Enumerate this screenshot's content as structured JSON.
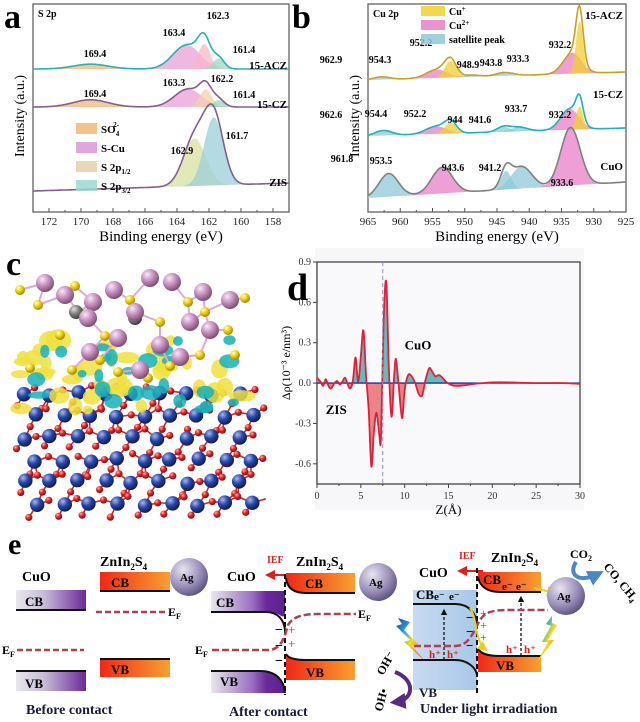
{
  "figure": {
    "panel_labels": [
      "a",
      "b",
      "c",
      "d",
      "e"
    ]
  },
  "chart_data": [
    {
      "id": "a",
      "type": "area",
      "title": "S 2p",
      "xlabel": "Binding energy (eV)",
      "ylabel": "Intensity (a.u.)",
      "xlim": [
        173,
        157
      ],
      "x_ticks": [
        172,
        170,
        168,
        166,
        164,
        162,
        160,
        158
      ],
      "legend": [
        {
          "name": "SO4 2-",
          "label_main": "SO",
          "label_sub": "4",
          "label_sup": "2-",
          "color": "#f0b878"
        },
        {
          "name": "S-Cu",
          "label_main": "S-Cu",
          "label_sub": "",
          "label_sup": "",
          "color": "#d898d8"
        },
        {
          "name": "S 2p1/2",
          "label_main": "S 2p",
          "label_sub": "1/2",
          "label_sup": "",
          "color": "#e8d0a8"
        },
        {
          "name": "S 2p3/2",
          "label_main": "S 2p",
          "label_sub": "3/2",
          "label_sup": "",
          "color": "#9cd8d0"
        }
      ],
      "series": [
        {
          "name": "15-ACZ",
          "envelope_color": "#2ab0b0",
          "peaks": [
            {
              "component": "SO4 2-",
              "center": 169.4,
              "height": 0.1,
              "width": 1.1,
              "color": "#f0b878"
            },
            {
              "component": "S-Cu",
              "center": 163.4,
              "height": 0.5,
              "width": 0.85,
              "color": "#e8a0d8"
            },
            {
              "component": "S 2p1/2",
              "center": 162.3,
              "height": 0.52,
              "width": 0.38,
              "color": "#f4b8c8"
            },
            {
              "component": "S 2p3/2",
              "center": 161.4,
              "height": 0.22,
              "width": 0.35,
              "color": "#9cd8c0"
            }
          ],
          "labels": [
            {
              "text": "169.4",
              "x": 169.4
            },
            {
              "text": "163.4",
              "x": 163.4
            },
            {
              "text": "162.3",
              "x": 162.3
            },
            {
              "text": "161.4",
              "x": 161.4
            }
          ]
        },
        {
          "name": "15-CZ",
          "envelope_color": "#806090",
          "peaks": [
            {
              "component": "SO4 2-",
              "center": 169.4,
              "height": 0.18,
              "width": 1.1,
              "color": "#f0b878"
            },
            {
              "component": "S-Cu",
              "center": 163.3,
              "height": 0.45,
              "width": 0.85,
              "color": "#e8a0d8"
            },
            {
              "component": "S 2p1/2",
              "center": 162.2,
              "height": 0.44,
              "width": 0.38,
              "color": "#f4d0a8"
            },
            {
              "component": "S 2p3/2",
              "center": 161.4,
              "height": 0.17,
              "width": 0.35,
              "color": "#9cd8c0"
            }
          ],
          "labels": [
            {
              "text": "169.4",
              "x": 169.4
            },
            {
              "text": "163.3",
              "x": 163.3
            },
            {
              "text": "162.2",
              "x": 162.2
            },
            {
              "text": "161.4",
              "x": 161.4
            }
          ]
        },
        {
          "name": "ZIS",
          "envelope_color": "#806090",
          "peaks": [
            {
              "component": "S 2p1/2",
              "center": 162.9,
              "height": 0.7,
              "width": 0.7,
              "color": "#d8e0a0"
            },
            {
              "component": "S 2p3/2",
              "center": 161.7,
              "height": 1.0,
              "width": 0.6,
              "color": "#9ccfd8"
            }
          ],
          "labels": [
            {
              "text": "162.9",
              "x": 162.9
            },
            {
              "text": "161.7",
              "x": 161.7
            }
          ]
        }
      ]
    },
    {
      "id": "b",
      "type": "area",
      "title": "Cu 2p",
      "xlabel": "Binding energy (eV)",
      "ylabel": "Intensity (a.u.)",
      "xlim": [
        965,
        925
      ],
      "x_ticks": [
        965,
        960,
        955,
        950,
        945,
        940,
        935,
        930,
        925
      ],
      "legend": [
        {
          "name": "Cu+",
          "label_main": "Cu",
          "label_sup": "+",
          "color": "#f0d030"
        },
        {
          "name": "Cu2+",
          "label_main": "Cu",
          "label_sup": "2+",
          "color": "#e880c8"
        },
        {
          "name": "satellite peak",
          "label_main": "satellite peak",
          "label_sup": "",
          "color": "#90c8d8"
        }
      ],
      "series": [
        {
          "name": "15-ACZ",
          "envelope_color": "#c8a020",
          "peaks": [
            {
              "component": "satellite peak",
              "center": 962.9,
              "height": 0.05,
              "width": 1.2,
              "color": "#90c8d8"
            },
            {
              "component": "Cu2+",
              "center": 954.3,
              "height": 0.15,
              "width": 1.6,
              "color": "#e880c8"
            },
            {
              "component": "Cu+",
              "center": 952.2,
              "height": 0.3,
              "width": 0.9,
              "color": "#f0d030"
            },
            {
              "component": "satellite peak",
              "center": 948.9,
              "height": 0.03,
              "width": 1.2,
              "color": "#90c8d8"
            },
            {
              "component": "satellite peak",
              "center": 943.8,
              "height": 0.06,
              "width": 1.3,
              "color": "#90c8d8"
            },
            {
              "component": "Cu2+",
              "center": 933.3,
              "height": 0.38,
              "width": 1.4,
              "color": "#e880c8"
            },
            {
              "component": "Cu+",
              "center": 932.2,
              "height": 0.95,
              "width": 0.55,
              "color": "#f0d030"
            }
          ],
          "labels": [
            {
              "text": "962.9",
              "x": 962.9
            },
            {
              "text": "954.3",
              "x": 954.3
            },
            {
              "text": "952.2",
              "x": 952.2
            },
            {
              "text": "948.9",
              "x": 948.9
            },
            {
              "text": "943.8",
              "x": 943.8
            },
            {
              "text": "933.3",
              "x": 933.3
            },
            {
              "text": "932.2",
              "x": 932.2
            }
          ]
        },
        {
          "name": "15-CZ",
          "envelope_color": "#20b0b8",
          "peaks": [
            {
              "component": "satellite peak",
              "center": 962.6,
              "height": 0.12,
              "width": 1.3,
              "color": "#90c8d8"
            },
            {
              "component": "Cu2+",
              "center": 954.4,
              "height": 0.18,
              "width": 1.6,
              "color": "#e880c8"
            },
            {
              "component": "Cu+",
              "center": 952.2,
              "height": 0.26,
              "width": 0.9,
              "color": "#f0d030"
            },
            {
              "component": "satellite peak",
              "center": 944.0,
              "height": 0.12,
              "width": 1.0,
              "color": "#90c8d8"
            },
            {
              "component": "satellite peak",
              "center": 941.6,
              "height": 0.1,
              "width": 1.3,
              "color": "#90c8d8"
            },
            {
              "component": "Cu2+",
              "center": 933.7,
              "height": 0.5,
              "width": 1.4,
              "color": "#e880c8"
            },
            {
              "component": "Cu+",
              "center": 932.2,
              "height": 0.55,
              "width": 0.55,
              "color": "#f0d030"
            }
          ],
          "labels": [
            {
              "text": "962.6",
              "x": 962.6
            },
            {
              "text": "954.4",
              "x": 954.4
            },
            {
              "text": "952.2",
              "x": 952.2
            },
            {
              "text": "944",
              "x": 944.0
            },
            {
              "text": "941.6",
              "x": 941.6
            },
            {
              "text": "933.7",
              "x": 933.7
            },
            {
              "text": "932.2",
              "x": 932.2
            }
          ]
        },
        {
          "name": "CuO",
          "envelope_color": "#808080",
          "peaks": [
            {
              "component": "satellite peak",
              "center": 961.8,
              "height": 0.4,
              "width": 1.5,
              "color": "#90c8d8"
            },
            {
              "component": "Cu2+",
              "center": 953.5,
              "height": 0.45,
              "width": 1.6,
              "color": "#e880c8"
            },
            {
              "component": "satellite peak",
              "center": 943.6,
              "height": 0.32,
              "width": 0.8,
              "color": "#90c8d8"
            },
            {
              "component": "satellite peak",
              "center": 941.2,
              "height": 0.38,
              "width": 1.6,
              "color": "#90c8d8"
            },
            {
              "component": "Cu2+",
              "center": 933.6,
              "height": 1.0,
              "width": 1.5,
              "color": "#e880c8"
            }
          ],
          "labels": [
            {
              "text": "961.8",
              "x": 961.8
            },
            {
              "text": "953.5",
              "x": 953.5
            },
            {
              "text": "943.6",
              "x": 943.6
            },
            {
              "text": "941.2",
              "x": 941.2
            },
            {
              "text": "933.6",
              "x": 933.6
            }
          ]
        }
      ]
    },
    {
      "id": "d",
      "type": "line",
      "xlabel": "Z(Å)",
      "ylabel": "Δρ(10⁻³ e/nm³)",
      "xlim": [
        0,
        30
      ],
      "ylim": [
        -0.75,
        0.9
      ],
      "x_ticks": [
        0,
        5,
        10,
        15,
        20,
        25,
        30
      ],
      "y_ticks": [
        0.9,
        0.6,
        0.3,
        0.0,
        -0.3,
        -0.6
      ],
      "y_tick_labels": [
        "0.9",
        "0.6",
        "0.3",
        "0.0",
        "-0.3",
        "-0.6"
      ],
      "interface_line_x": 7.5,
      "annotations": [
        {
          "text": "CuO",
          "x": 10.0,
          "y": 0.25
        },
        {
          "text": "ZIS",
          "x": 1.0,
          "y": -0.23
        }
      ],
      "series": [
        {
          "name": "Δρ",
          "color": "#e0203a",
          "x": [
            0,
            0.4,
            0.7,
            1.0,
            1.3,
            1.6,
            2.0,
            2.3,
            2.6,
            2.9,
            3.2,
            3.5,
            3.8,
            4.1,
            4.4,
            4.7,
            5.0,
            5.3,
            5.6,
            5.9,
            6.2,
            6.5,
            6.8,
            7.1,
            7.3,
            7.6,
            7.9,
            8.2,
            8.5,
            8.8,
            9.0,
            9.3,
            9.7,
            10.0,
            10.4,
            10.8,
            11.2,
            11.6,
            12.0,
            12.4,
            12.8,
            13.1,
            13.5,
            13.9,
            14.3,
            14.7,
            15.2,
            15.7,
            16.3,
            17.0,
            18.0,
            19.0,
            20.0,
            22.0,
            25.0,
            28.0,
            30.0
          ],
          "y": [
            0.04,
            0.01,
            -0.02,
            0.03,
            -0.02,
            -0.04,
            0.0,
            0.015,
            -0.01,
            0.01,
            0.04,
            -0.01,
            -0.04,
            0.02,
            0.19,
            0.01,
            0.2,
            0.39,
            0.05,
            -0.2,
            -0.62,
            -0.35,
            -0.22,
            -0.38,
            -0.4,
            0.45,
            0.75,
            0.1,
            -0.25,
            0.05,
            0.18,
            0.0,
            -0.26,
            -0.05,
            0.06,
            0.05,
            0.0,
            -0.08,
            -0.09,
            0.03,
            0.11,
            0.09,
            0.05,
            0.06,
            0.04,
            0.01,
            -0.01,
            -0.02,
            -0.02,
            -0.015,
            -0.005,
            0.0,
            0.005,
            0.005,
            0.0,
            0.0,
            -0.005
          ]
        }
      ]
    }
  ],
  "panel_a": {
    "label": "a"
  },
  "panel_b": {
    "label": "b"
  },
  "panel_c": {
    "label": "c",
    "description": "charge density difference isosurface of CuO/ZnIn2S4 interface",
    "colors": {
      "zn_in": "#c890c0",
      "s": "#f0d000",
      "cu": "#2040a0",
      "o": "#e02020",
      "ag": "#808080",
      "charge_gain": "#f0e040",
      "charge_loss": "#20b8c0"
    }
  },
  "panel_d": {
    "label": "d"
  },
  "panel_e": {
    "label": "e",
    "stages": [
      {
        "caption": "Before contact",
        "cuo_label": "CuO",
        "zis_label_main": "ZnIn",
        "zis_sub1": "2",
        "zis_mid": "S",
        "zis_sub2": "4",
        "cb": "CB",
        "vb": "VB",
        "ef": "E",
        "ef_sub": "F",
        "ag": "Ag"
      },
      {
        "caption": "After contact",
        "cuo_label": "CuO",
        "zis_label_main": "ZnIn",
        "zis_sub1": "2",
        "zis_mid": "S",
        "zis_sub2": "4",
        "cb": "CB",
        "vb": "VB",
        "ef": "E",
        "ef_sub": "F",
        "ag": "Ag",
        "ief": "IEF",
        "minus": "−",
        "plus": "+"
      },
      {
        "caption": "Under light irradiation",
        "cuo_label": "CuO",
        "zis_label_main": "ZnIn",
        "zis_sub1": "2",
        "zis_mid": "S",
        "zis_sub2": "4",
        "cb": "CB",
        "vb": "VB",
        "ag": "Ag",
        "ief": "IEF",
        "electron": "e⁻",
        "hole": "h⁺",
        "co2": "CO",
        "co2_sub": "2",
        "products": "CO, CH",
        "products_sub": "4",
        "oh_minus": "OH⁻",
        "oh_radical": "OH•",
        "vb_bottom": "VB"
      }
    ],
    "colors": {
      "ief_red": "#e02020",
      "ef_dashed": "#b04050",
      "cuo_purple": "#6a2a98",
      "zis_red": "#f02818",
      "zis_orange": "#f8a030",
      "ag_sphere": "#8a80a8"
    }
  }
}
